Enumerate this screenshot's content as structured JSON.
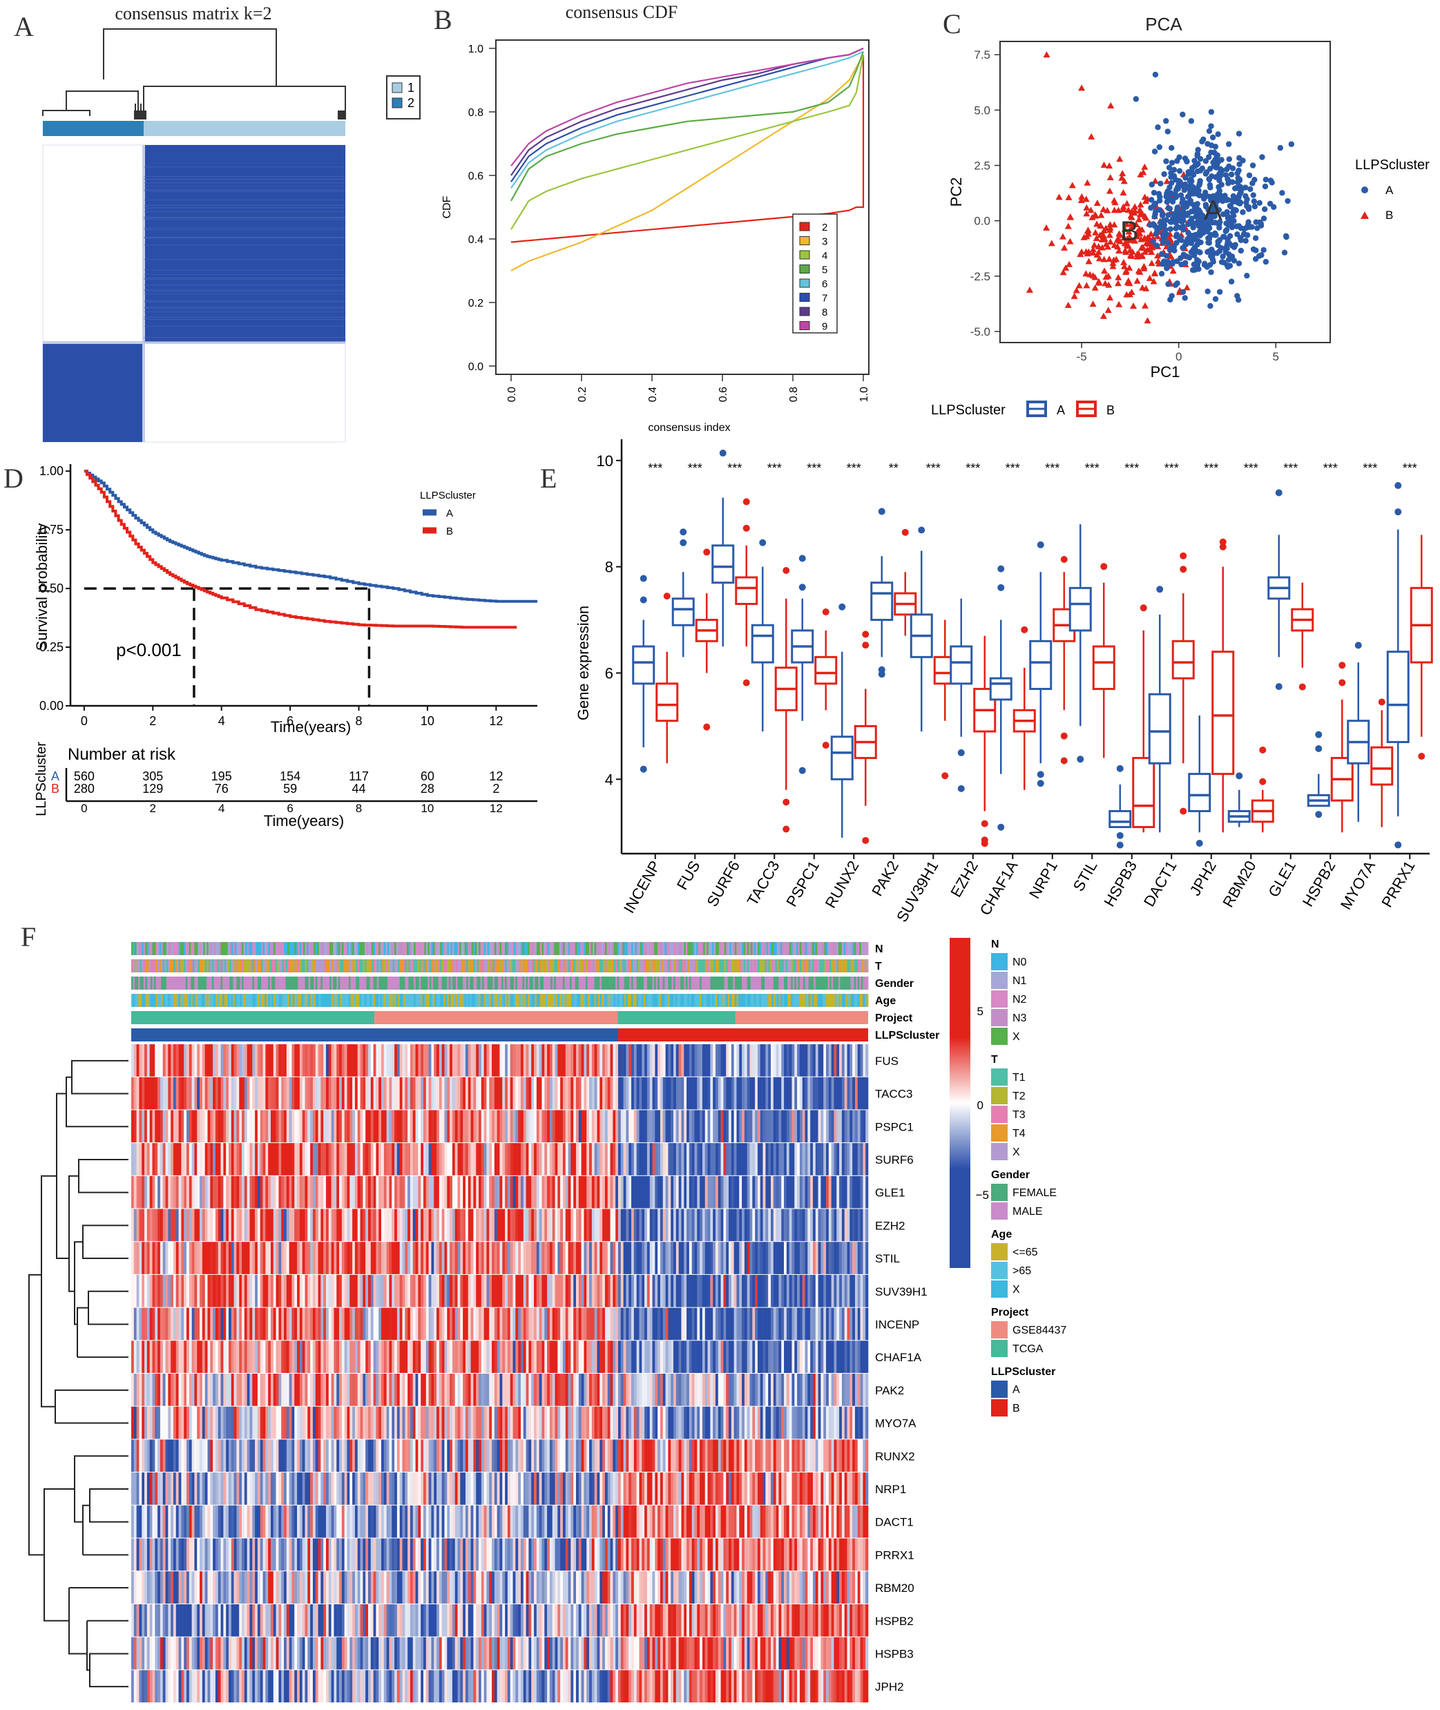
{
  "colors": {
    "blue": "#2b5ba8",
    "red": "#e2231a",
    "lightblue": "#a9cde3",
    "darkblue": "#2166ac",
    "heatblue": "#2b4ea8"
  },
  "chart_data": [
    {
      "panel": "A",
      "type": "heatmap",
      "title": "consensus matrix k=2",
      "legend": [
        "1",
        "2"
      ],
      "blocks": [
        {
          "cluster": "2",
          "fraction": 0.33,
          "consensus": 1.0
        },
        {
          "cluster": "1",
          "fraction": 0.67,
          "consensus": 1.0
        }
      ]
    },
    {
      "panel": "B",
      "type": "line",
      "title": "consensus CDF",
      "xlabel": "consensus index",
      "ylabel": "CDF",
      "xlim": [
        0,
        1
      ],
      "ylim": [
        0,
        1
      ],
      "xticks": [
        "0.0",
        "0.2",
        "0.4",
        "0.6",
        "0.8",
        "1.0"
      ],
      "yticks": [
        "0.0",
        "0.2",
        "0.4",
        "0.6",
        "0.8",
        "1.0"
      ],
      "x": [
        0.0,
        0.05,
        0.1,
        0.2,
        0.3,
        0.4,
        0.5,
        0.6,
        0.7,
        0.8,
        0.9,
        0.96,
        0.98,
        1.0
      ],
      "series": [
        {
          "name": "2",
          "color": "#e2231a",
          "values": [
            0.39,
            0.395,
            0.4,
            0.41,
            0.42,
            0.43,
            0.44,
            0.45,
            0.46,
            0.47,
            0.48,
            0.49,
            0.5,
            0.98
          ]
        },
        {
          "name": "3",
          "color": "#f0b92d",
          "values": [
            0.3,
            0.33,
            0.35,
            0.39,
            0.44,
            0.49,
            0.56,
            0.63,
            0.7,
            0.77,
            0.84,
            0.9,
            0.94,
            0.98
          ]
        },
        {
          "name": "4",
          "color": "#9bc53d",
          "values": [
            0.43,
            0.52,
            0.55,
            0.59,
            0.62,
            0.65,
            0.68,
            0.71,
            0.74,
            0.77,
            0.8,
            0.82,
            0.86,
            0.98
          ]
        },
        {
          "name": "5",
          "color": "#5aaa46",
          "values": [
            0.52,
            0.62,
            0.66,
            0.7,
            0.73,
            0.75,
            0.77,
            0.78,
            0.79,
            0.8,
            0.83,
            0.88,
            0.93,
            0.99
          ]
        },
        {
          "name": "6",
          "color": "#63c3de",
          "values": [
            0.56,
            0.64,
            0.68,
            0.73,
            0.77,
            0.8,
            0.83,
            0.86,
            0.89,
            0.92,
            0.95,
            0.97,
            0.98,
            0.99
          ]
        },
        {
          "name": "7",
          "color": "#2b4ea8",
          "values": [
            0.58,
            0.66,
            0.7,
            0.75,
            0.79,
            0.82,
            0.85,
            0.88,
            0.91,
            0.94,
            0.97,
            0.98,
            0.99,
            1.0
          ]
        },
        {
          "name": "8",
          "color": "#5b3a8c",
          "values": [
            0.6,
            0.68,
            0.72,
            0.77,
            0.81,
            0.84,
            0.87,
            0.9,
            0.92,
            0.95,
            0.97,
            0.98,
            0.99,
            1.0
          ]
        },
        {
          "name": "9",
          "color": "#c044a6",
          "values": [
            0.63,
            0.7,
            0.74,
            0.79,
            0.83,
            0.86,
            0.89,
            0.91,
            0.93,
            0.95,
            0.97,
            0.98,
            0.99,
            1.0
          ]
        }
      ]
    },
    {
      "panel": "C",
      "type": "scatter",
      "title": "PCA",
      "xlabel": "PC1",
      "ylabel": "PC2",
      "xlim": [
        -9.2,
        7.8
      ],
      "ylim": [
        -5.5,
        8.1
      ],
      "xticks": [
        "-5",
        "0",
        "5"
      ],
      "yticks": [
        "7.5",
        "5.0",
        "2.5",
        "0.0",
        "-2.5",
        "-5.0"
      ],
      "legend_title": "LLPScluster",
      "groups": [
        {
          "name": "A",
          "color": "#2b5ba8",
          "shape": "circle",
          "center": [
            1.3,
            0.3
          ],
          "spread": [
            1.6,
            1.55
          ],
          "n": 560
        },
        {
          "name": "B",
          "color": "#e2231a",
          "shape": "triangle",
          "center": [
            -2.6,
            -1.0
          ],
          "spread": [
            1.7,
            1.3
          ],
          "n": 280
        }
      ],
      "annotations": [
        "A",
        "B"
      ]
    },
    {
      "panel": "D",
      "type": "line",
      "xlabel": "Time(years)",
      "ylabel": "Survival probability",
      "xlim": [
        -0.4,
        13.2
      ],
      "ylim": [
        0,
        1.03
      ],
      "xticks": [
        "0",
        "2",
        "4",
        "6",
        "8",
        "10",
        "12"
      ],
      "yticks": [
        "1.00",
        "0.75",
        "0.50",
        "0.25",
        "0.00"
      ],
      "legend_title": "LLPScluster",
      "pvalue": "p<0.001",
      "median": {
        "A": 8.3,
        "B": 3.2
      },
      "series": [
        {
          "name": "A",
          "color": "#2b5ba8",
          "x": [
            0,
            0.5,
            1,
            1.5,
            2,
            2.5,
            3,
            3.5,
            4,
            5,
            6,
            7,
            8,
            9,
            10,
            11,
            12,
            13.2
          ],
          "values": [
            1.0,
            0.95,
            0.87,
            0.8,
            0.74,
            0.7,
            0.67,
            0.64,
            0.62,
            0.59,
            0.57,
            0.55,
            0.52,
            0.5,
            0.47,
            0.455,
            0.445,
            0.445
          ]
        },
        {
          "name": "B",
          "color": "#e2231a",
          "x": [
            0,
            0.5,
            1,
            1.5,
            2,
            2.5,
            3,
            3.5,
            4,
            5,
            6,
            7,
            8,
            9,
            10,
            11,
            12.6
          ],
          "values": [
            1.0,
            0.91,
            0.79,
            0.69,
            0.61,
            0.56,
            0.52,
            0.49,
            0.46,
            0.41,
            0.38,
            0.36,
            0.345,
            0.34,
            0.34,
            0.335,
            0.335
          ]
        }
      ],
      "risk_table": {
        "title": "Number at risk",
        "ylabel": "LLPScluster",
        "rows": [
          {
            "name": "A",
            "values": [
              "560",
              "305",
              "195",
              "154",
              "117",
              "60",
              "12"
            ]
          },
          {
            "name": "B",
            "values": [
              "280",
              "129",
              "76",
              "59",
              "44",
              "28",
              "2"
            ]
          }
        ],
        "xticks": [
          "0",
          "2",
          "4",
          "6",
          "8",
          "10",
          "12"
        ],
        "xlabel": "Time(years)"
      }
    },
    {
      "panel": "E",
      "type": "bar",
      "subtype": "boxplot",
      "xlabel": "",
      "ylabel": "Gene expression",
      "ylim": [
        2.6,
        10.4
      ],
      "yticks": [
        "4",
        "6",
        "8",
        "10"
      ],
      "legend_title": "LLPScluster",
      "legend": [
        "A",
        "B"
      ],
      "categories": [
        "INCENP",
        "FUS",
        "SURF6",
        "TACC3",
        "PSPC1",
        "RUNX2",
        "PAK2",
        "SUV39H1",
        "EZH2",
        "CHAF1A",
        "NRP1",
        "STIL",
        "HSPB3",
        "DACT1",
        "JPH2",
        "RBM20",
        "GLE1",
        "HSPB2",
        "MYO7A",
        "PRRX1"
      ],
      "significance": [
        "***",
        "***",
        "***",
        "***",
        "***",
        "***",
        "**",
        "***",
        "***",
        "***",
        "***",
        "***",
        "***",
        "***",
        "***",
        "***",
        "***",
        "***",
        "***",
        "***"
      ],
      "series": [
        {
          "name": "A",
          "color": "#2b5ba8",
          "box": [
            [
              4.6,
              5.8,
              6.2,
              6.5,
              7.0
            ],
            [
              6.3,
              6.9,
              7.2,
              7.4,
              7.9
            ],
            [
              6.5,
              7.7,
              8.0,
              8.4,
              9.3
            ],
            [
              4.9,
              6.2,
              6.7,
              6.9,
              8.0
            ],
            [
              5.1,
              6.2,
              6.5,
              6.8,
              7.4
            ],
            [
              2.9,
              4.0,
              4.5,
              4.8,
              6.4
            ],
            [
              6.3,
              7.0,
              7.5,
              7.7,
              8.2
            ],
            [
              4.9,
              6.3,
              6.7,
              7.1,
              8.3
            ],
            [
              4.8,
              5.8,
              6.2,
              6.5,
              7.4
            ],
            [
              4.1,
              5.5,
              5.8,
              5.9,
              7.0
            ],
            [
              4.3,
              5.7,
              6.2,
              6.6,
              7.9
            ],
            [
              5.0,
              6.8,
              7.3,
              7.6,
              8.8
            ],
            [
              3.1,
              3.1,
              3.2,
              3.4,
              3.9
            ],
            [
              3.0,
              4.3,
              4.9,
              5.6,
              7.1
            ],
            [
              3.0,
              3.4,
              3.7,
              4.1,
              5.2
            ],
            [
              3.1,
              3.2,
              3.3,
              3.4,
              3.8
            ],
            [
              6.3,
              7.4,
              7.6,
              7.8,
              8.6
            ],
            [
              3.5,
              3.5,
              3.6,
              3.7,
              4.1
            ],
            [
              3.2,
              4.3,
              4.7,
              5.1,
              6.2
            ],
            [
              3.3,
              4.7,
              5.4,
              6.4,
              8.7
            ]
          ]
        },
        {
          "name": "B",
          "color": "#e2231a",
          "box": [
            [
              4.3,
              5.1,
              5.4,
              5.8,
              6.4
            ],
            [
              6.0,
              6.6,
              6.8,
              7.0,
              7.5
            ],
            [
              6.5,
              7.3,
              7.6,
              7.8,
              8.4
            ],
            [
              3.8,
              5.3,
              5.7,
              6.1,
              7.4
            ],
            [
              5.3,
              5.8,
              6.0,
              6.3,
              6.8
            ],
            [
              3.5,
              4.4,
              4.7,
              5.0,
              5.7
            ],
            [
              6.7,
              7.1,
              7.3,
              7.5,
              7.9
            ],
            [
              5.1,
              5.8,
              6.0,
              6.3,
              7.0
            ],
            [
              3.4,
              4.9,
              5.3,
              5.7,
              6.7
            ],
            [
              3.8,
              4.9,
              5.1,
              5.3,
              6.1
            ],
            [
              5.3,
              6.6,
              6.9,
              7.2,
              7.9
            ],
            [
              4.4,
              5.7,
              6.2,
              6.5,
              7.7
            ],
            [
              3.0,
              3.1,
              3.5,
              4.4,
              6.8
            ],
            [
              4.3,
              5.9,
              6.2,
              6.6,
              7.5
            ],
            [
              3.0,
              4.1,
              5.2,
              6.4,
              8.0
            ],
            [
              3.0,
              3.2,
              3.4,
              3.6,
              3.8
            ],
            [
              6.1,
              6.8,
              7.0,
              7.2,
              7.7
            ],
            [
              3.0,
              3.6,
              4.0,
              4.4,
              5.5
            ],
            [
              3.1,
              3.9,
              4.2,
              4.6,
              5.3
            ],
            [
              4.8,
              6.2,
              6.9,
              7.6,
              8.6
            ]
          ]
        }
      ]
    },
    {
      "panel": "F",
      "type": "heatmap",
      "rows": [
        "FUS",
        "TACC3",
        "PSPC1",
        "SURF6",
        "GLE1",
        "EZH2",
        "STIL",
        "SUV39H1",
        "INCENP",
        "CHAF1A",
        "PAK2",
        "MYO7A",
        "RUNX2",
        "NRP1",
        "DACT1",
        "PRRX1",
        "RBM20",
        "HSPB2",
        "HSPB3",
        "JPH2"
      ],
      "row_pattern": [
        1,
        1,
        1,
        1,
        1,
        1,
        1,
        1,
        1,
        1,
        0.5,
        0.6,
        -0.6,
        -0.8,
        -0.8,
        -0.8,
        -0.3,
        -0.9,
        -0.6,
        -0.9
      ],
      "annotation_tracks": [
        "N",
        "T",
        "Gender",
        "Age",
        "Project",
        "LLPScluster"
      ],
      "colorbar_ticks": [
        "5",
        "0",
        "−5"
      ],
      "cluster_split": {
        "A": 0.66,
        "B": 0.34
      },
      "project_split": {
        "TCGA_A": 0.33,
        "GSE84437_A": 0.33,
        "TCGA_B": 0.16,
        "GSE84437_B": 0.18
      },
      "legends": [
        {
          "title": "N",
          "items": [
            {
              "label": "N0",
              "color": "#3cb6e3"
            },
            {
              "label": "N1",
              "color": "#a6a6d8"
            },
            {
              "label": "N2",
              "color": "#d889c6"
            },
            {
              "label": "N3",
              "color": "#c38ec8"
            },
            {
              "label": "X",
              "color": "#56b04b"
            }
          ]
        },
        {
          "title": "T",
          "items": [
            {
              "label": "T1",
              "color": "#4fbfa8"
            },
            {
              "label": "T2",
              "color": "#b5b632"
            },
            {
              "label": "T3",
              "color": "#e57fb0"
            },
            {
              "label": "T4",
              "color": "#e89a2a"
            },
            {
              "label": "X",
              "color": "#b39bd1"
            }
          ]
        },
        {
          "title": "Gender",
          "items": [
            {
              "label": "FEMALE",
              "color": "#4bab7a"
            },
            {
              "label": "MALE",
              "color": "#c98bc9"
            }
          ]
        },
        {
          "title": "Age",
          "items": [
            {
              "label": "<=65",
              "color": "#c8b22a"
            },
            {
              "label": ">65",
              "color": "#55c1e0"
            },
            {
              "label": "X",
              "color": "#3db8df"
            }
          ]
        },
        {
          "title": "Project",
          "items": [
            {
              "label": "GSE84437",
              "color": "#ef8b80"
            },
            {
              "label": "TCGA",
              "color": "#45b99a"
            }
          ]
        },
        {
          "title": "LLPScluster",
          "items": [
            {
              "label": "A",
              "color": "#2b5ba8"
            },
            {
              "label": "B",
              "color": "#e2231a"
            }
          ]
        }
      ]
    }
  ],
  "panel_labels": [
    "A",
    "B",
    "C",
    "D",
    "E",
    "F"
  ]
}
